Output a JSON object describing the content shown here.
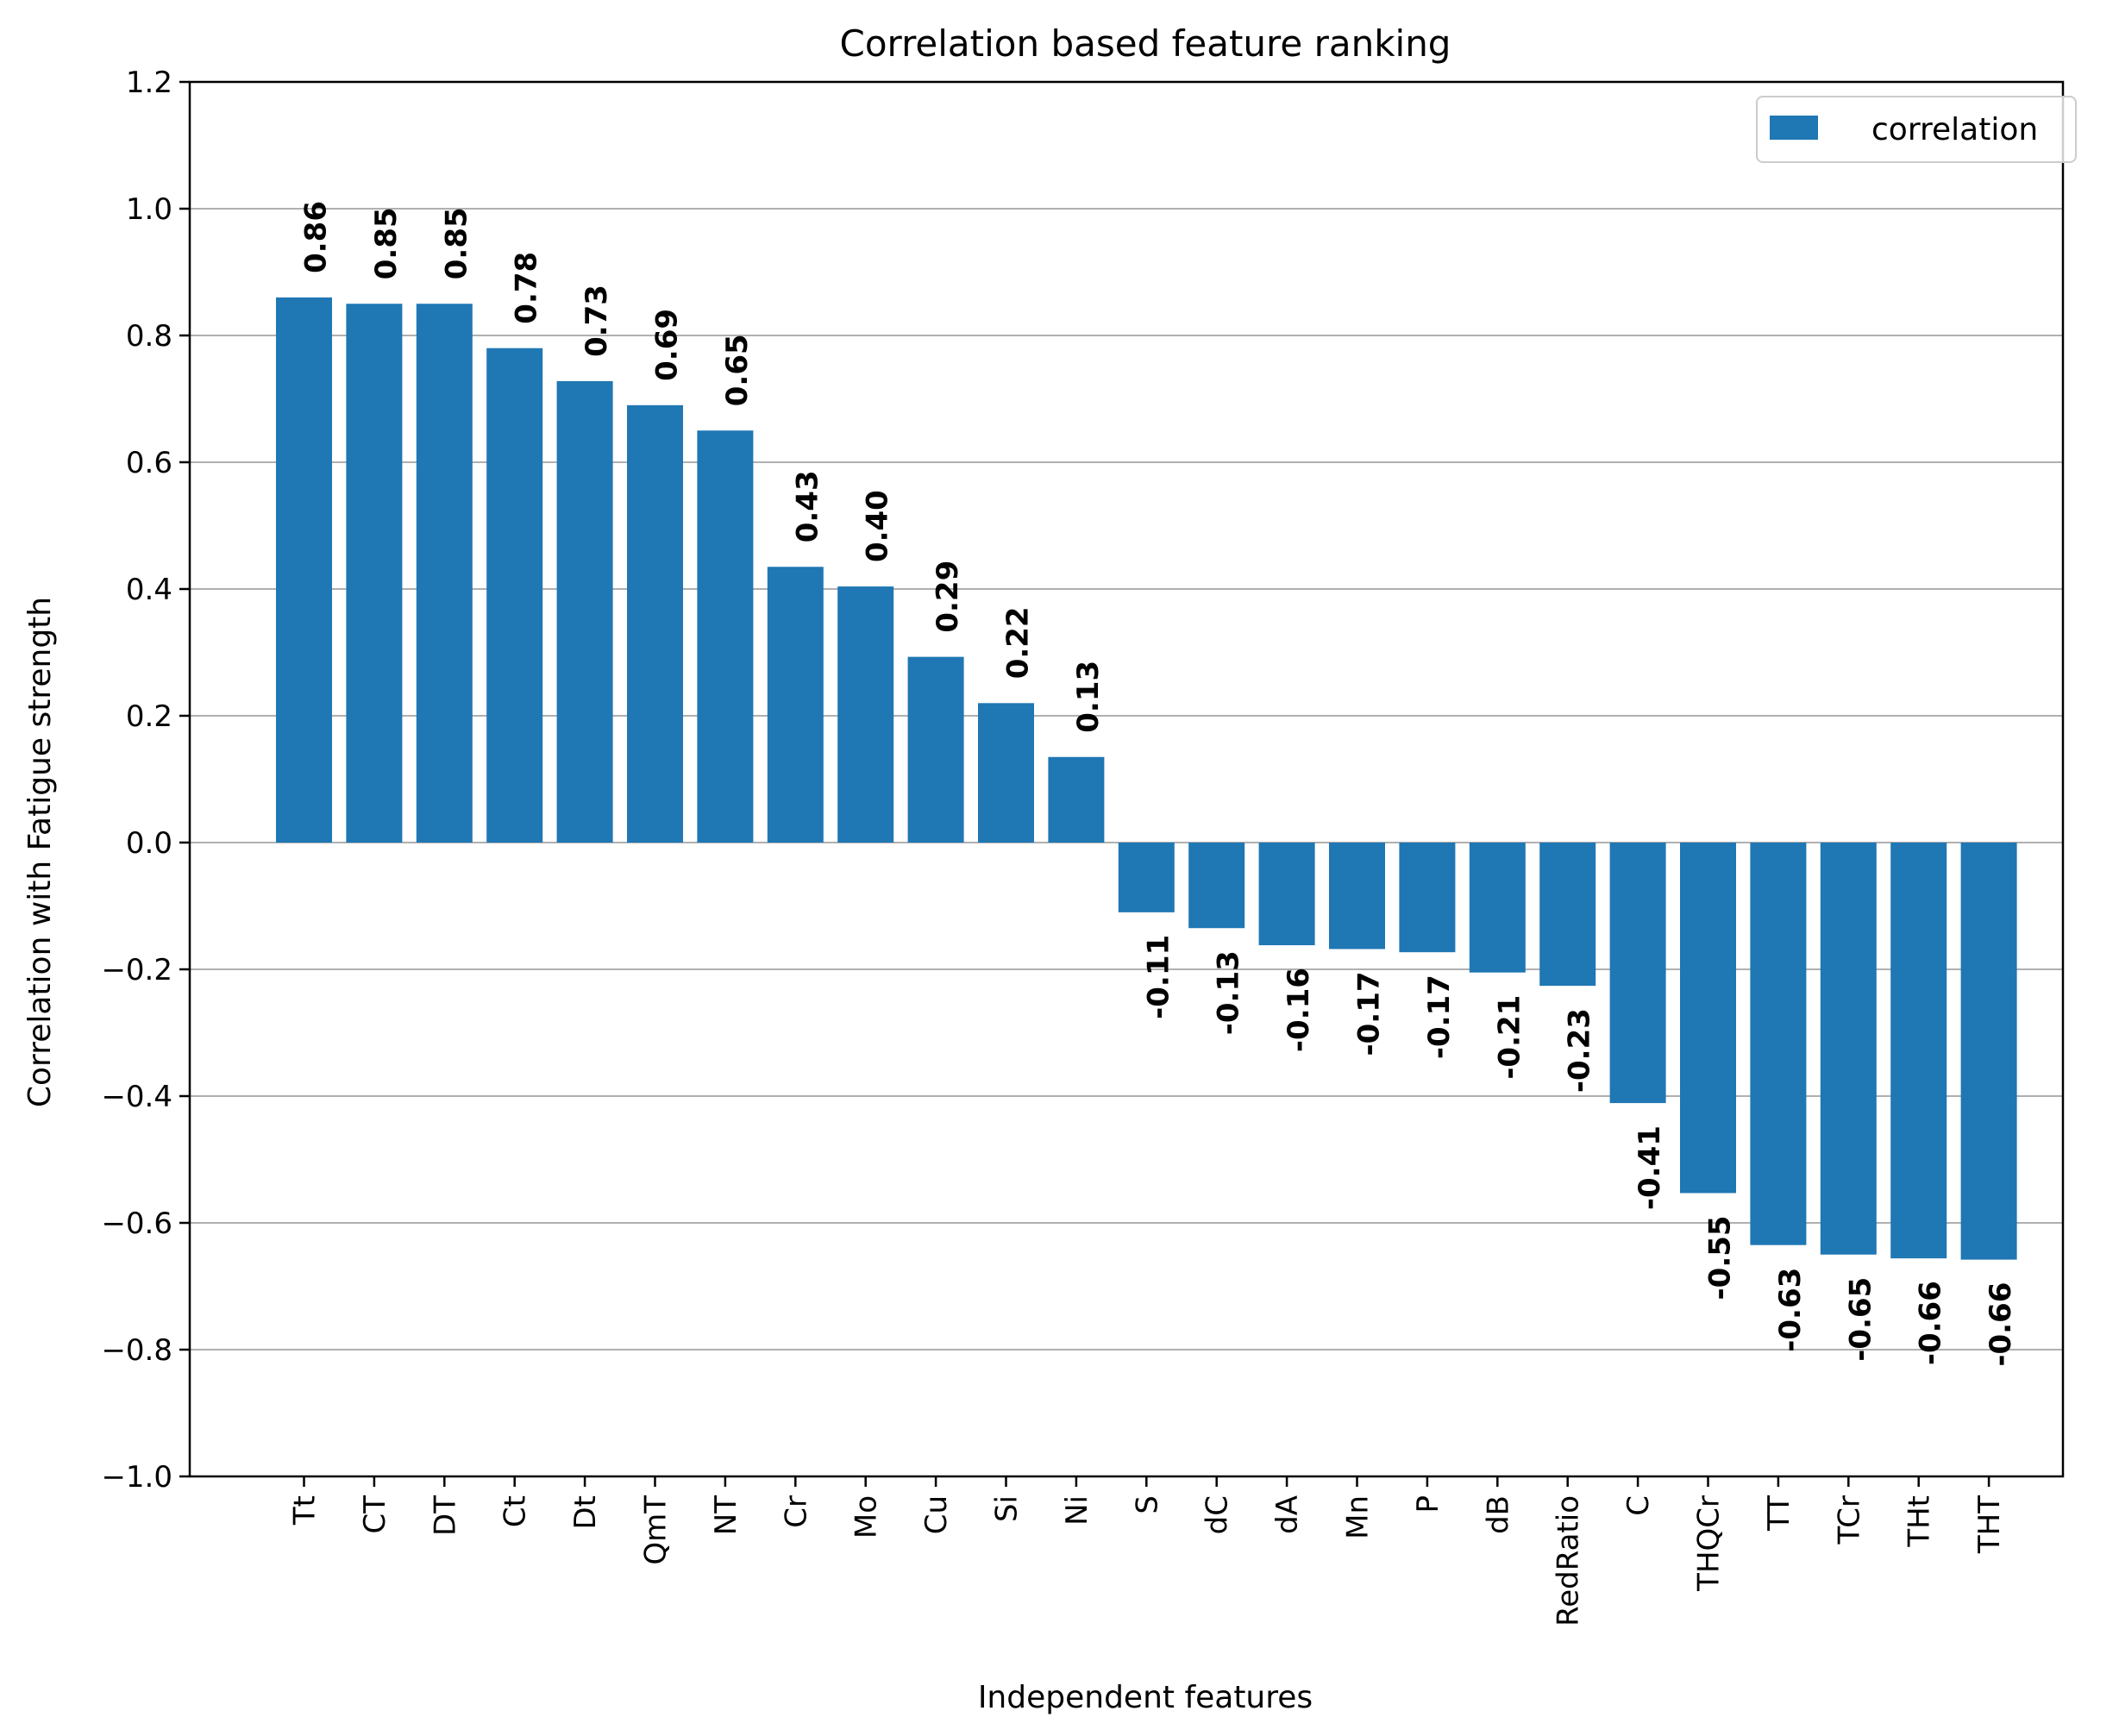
{
  "chart_data": {
    "type": "bar",
    "title": "Correlation based feature ranking",
    "xlabel": "Independent features",
    "ylabel": "Correlation with Fatigue strength",
    "ylim": [
      -1.0,
      1.2
    ],
    "yticks": [
      -1.0,
      -0.8,
      -0.6,
      -0.4,
      -0.2,
      0.0,
      0.2,
      0.4,
      0.6,
      0.8,
      1.0,
      1.2
    ],
    "ytick_labels": [
      "−1.0",
      "−0.8",
      "−0.6",
      "−0.4",
      "−0.2",
      "0.0",
      "0.2",
      "0.4",
      "0.6",
      "0.8",
      "1.0",
      "1.2"
    ],
    "grid": "y",
    "legend": {
      "placement": "top-right",
      "entries": [
        "correlation"
      ]
    },
    "bar_color": "#1f77b4",
    "categories": [
      "Tt",
      "CT",
      "DT",
      "Ct",
      "Dt",
      "QmT",
      "NT",
      "Cr",
      "Mo",
      "Cu",
      "Si",
      "Ni",
      "S",
      "dC",
      "dA",
      "Mn",
      "P",
      "dB",
      "RedRatio",
      "C",
      "THQCr",
      "TT",
      "TCr",
      "THt",
      "THT"
    ],
    "values": [
      0.86,
      0.85,
      0.85,
      0.78,
      0.728,
      0.69,
      0.65,
      0.435,
      0.404,
      0.293,
      0.22,
      0.135,
      -0.11,
      -0.135,
      -0.162,
      -0.168,
      -0.173,
      -0.205,
      -0.226,
      -0.411,
      -0.553,
      -0.635,
      -0.65,
      -0.656,
      -0.658
    ],
    "data_labels": [
      "0.86",
      "0.85",
      "0.85",
      "0.78",
      "0.73",
      "0.69",
      "0.65",
      "0.43",
      "0.40",
      "0.29",
      "0.22",
      "0.13",
      "-0.11",
      "-0.13",
      "-0.16",
      "-0.17",
      "-0.17",
      "-0.21",
      "-0.23",
      "-0.41",
      "-0.55",
      "-0.63",
      "-0.65",
      "-0.66",
      "-0.66"
    ]
  }
}
